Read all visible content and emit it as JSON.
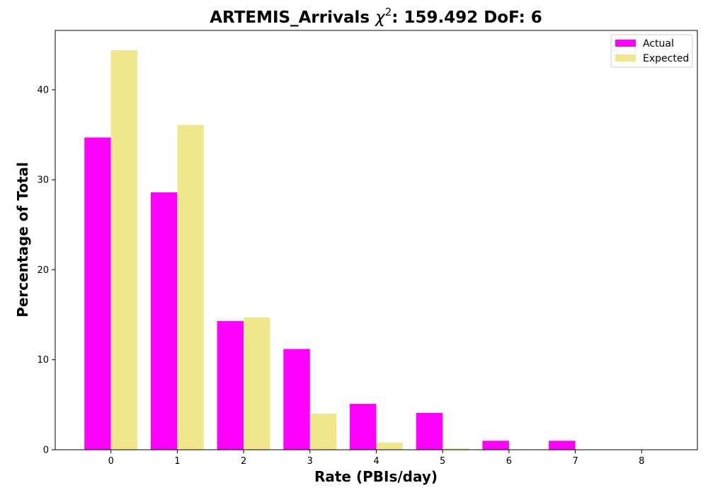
{
  "chart_data": {
    "type": "bar",
    "title_main": "ARTEMIS_Arrivals ",
    "title_chi": "χ",
    "title_sup": "2",
    "title_rest": ": 159.492 DoF: 6",
    "xlabel": "Rate (PBIs/day)",
    "ylabel": "Percentage of Total",
    "categories": [
      "0",
      "1",
      "2",
      "3",
      "4",
      "5",
      "6",
      "7",
      "8"
    ],
    "x": [
      0,
      1,
      2,
      3,
      4,
      5,
      6,
      7,
      8
    ],
    "xlim": [
      -0.84,
      8.84
    ],
    "ylim": [
      0,
      46.6
    ],
    "yticks": [
      0,
      10,
      20,
      30,
      40
    ],
    "series": [
      {
        "name": "Actual",
        "color": "#ff00ff",
        "values": [
          34.7,
          28.6,
          14.3,
          11.2,
          5.1,
          4.1,
          1.0,
          1.0,
          0
        ]
      },
      {
        "name": "Expected",
        "color": "#f0e68c",
        "values": [
          44.4,
          36.1,
          14.7,
          4.0,
          0.8,
          0.15,
          0.02,
          0.0,
          0.0
        ]
      }
    ],
    "legend": "top-right",
    "grid": false
  }
}
